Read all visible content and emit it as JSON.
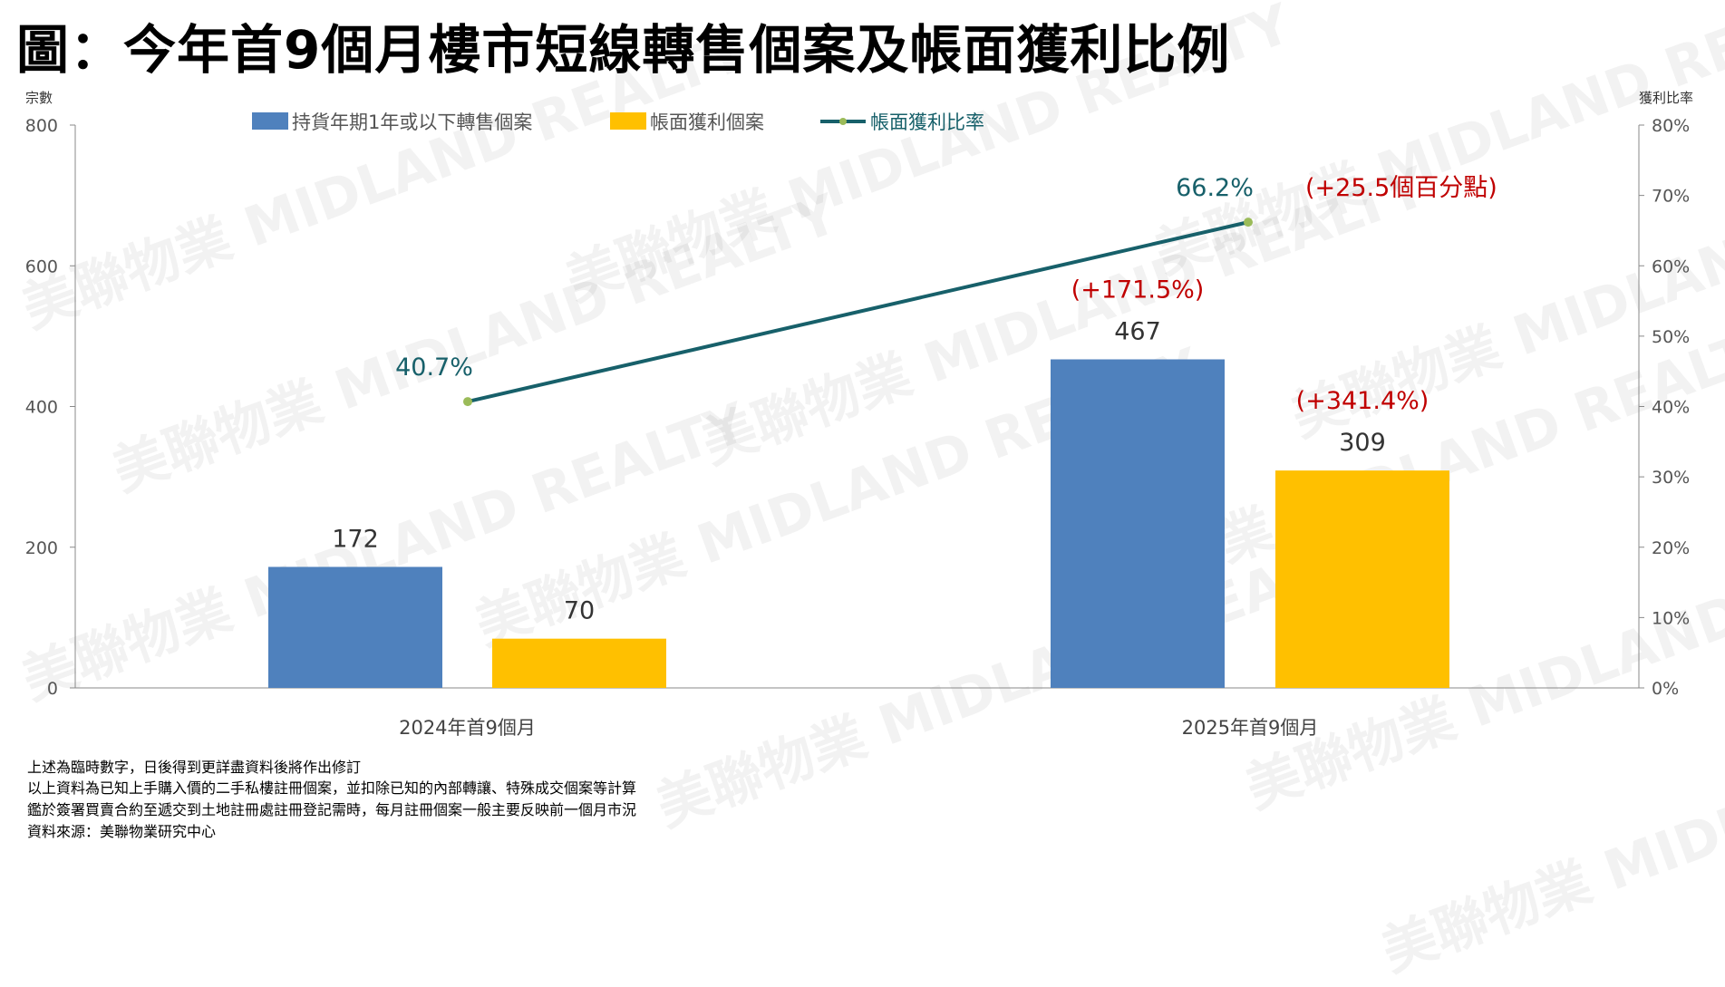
{
  "title": "圖：今年首9個月樓市短線轉售個案及帳面獲利比例",
  "watermark": "美聯物業 MIDLAND REALTY",
  "colors": {
    "blue": "#4F81BD",
    "yellow": "#FFC000",
    "line": "#17606A",
    "marker": "#9BBB59",
    "red": "#C00000"
  },
  "chart_data": {
    "type": "bar+line",
    "categories": [
      "2024年首9個月",
      "2025年首9個月"
    ],
    "y_left_label": "宗數",
    "y_left_lim": [
      0,
      800
    ],
    "y_left_ticks": [
      "0",
      "200",
      "400",
      "600",
      "800"
    ],
    "y_right_label": "獲利比率",
    "y_right_lim": [
      0,
      80
    ],
    "y_right_ticks": [
      "0%",
      "10%",
      "20%",
      "30%",
      "40%",
      "50%",
      "60%",
      "70%",
      "80%"
    ],
    "legend_position": "top",
    "series": [
      {
        "name": "持貨年期1年或以下轉售個案",
        "type": "bar",
        "values": [
          172,
          467
        ],
        "labels": [
          "172",
          "467"
        ],
        "annotations": [
          "",
          "(+171.5%)"
        ]
      },
      {
        "name": "帳面獲利個案",
        "type": "bar",
        "values": [
          70,
          309
        ],
        "labels": [
          "70",
          "309"
        ],
        "annotations": [
          "",
          "(+341.4%)"
        ]
      },
      {
        "name": "帳面獲利比率",
        "type": "line",
        "axis": "right",
        "values": [
          40.7,
          66.2
        ],
        "labels": [
          "40.7%",
          "66.2%"
        ],
        "annotations": [
          "",
          "(+25.5個百分點)"
        ]
      }
    ]
  },
  "footer": [
    "上述為臨時數字，日後得到更詳盡資料後將作出修訂",
    "以上資料為已知上手購入價的二手私樓註冊個案，並扣除已知的內部轉讓、特殊成交個案等計算",
    "鑑於簽署買賣合約至遞交到土地註冊處註冊登記需時，每月註冊個案一般主要反映前一個月市況",
    "資料來源：美聯物業研究中心"
  ]
}
